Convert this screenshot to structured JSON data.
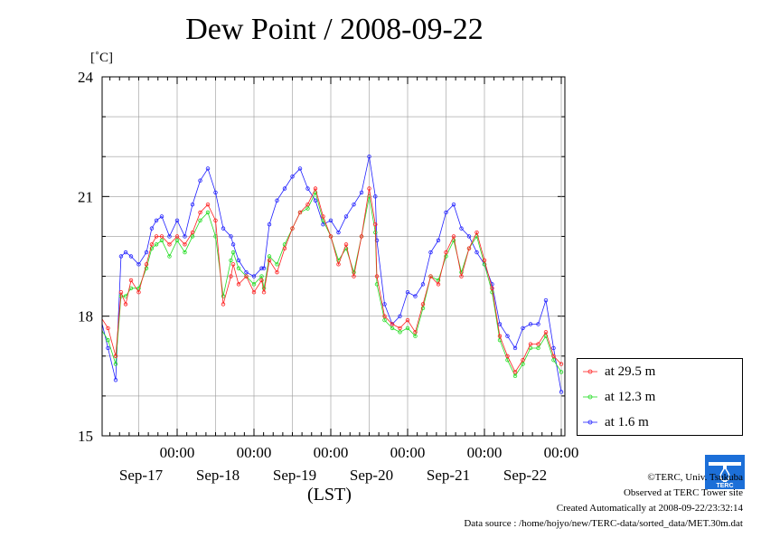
{
  "title": "Dew Point / 2008-09-22",
  "y_unit": "[˚C]",
  "x_unit": "(LST)",
  "legend": [
    {
      "label": "at 29.5 m",
      "color": "#ff2020"
    },
    {
      "label": "at 12.3 m",
      "color": "#22dd22"
    },
    {
      "label": "at 1.6 m",
      "color": "#2020ff"
    }
  ],
  "footer": {
    "copyright": "©TERC, Univ. Tsukuba",
    "observed": "Observed at TERC Tower site",
    "created": "Created Automatically at 2008-09-22/23:32:14",
    "source": "Data source : /home/hojyo/new/TERC-data/sorted_data/MET.30m.dat"
  },
  "logo": {
    "text": "TERC",
    "icon": "terc-logo-icon"
  },
  "chart_data": {
    "type": "line",
    "title": "Dew Point / 2008-09-22",
    "ylabel": "[˚C]",
    "xlabel": "(LST)",
    "ylim": [
      15,
      24
    ],
    "yticks": [
      15,
      18,
      21,
      24
    ],
    "xlim": [
      0,
      6
    ],
    "x_unit": "days since Sep-16 00:00 LST",
    "xticks": [
      {
        "x": 1,
        "time": "00:00",
        "date": "Sep-17"
      },
      {
        "x": 2,
        "time": "00:00",
        "date": "Sep-18"
      },
      {
        "x": 3,
        "time": "00:00",
        "date": "Sep-19"
      },
      {
        "x": 4,
        "time": "00:00",
        "date": "Sep-20"
      },
      {
        "x": 5,
        "time": "00:00",
        "date": "Sep-21"
      },
      {
        "x": 6,
        "time": "00:00",
        "date": "Sep-22"
      }
    ],
    "grid": true,
    "legend_position": "right-bottom",
    "series": [
      {
        "name": "at 29.5 m",
        "color": "#ff2020",
        "x": [
          0.0,
          0.1,
          0.2,
          0.27,
          0.33,
          0.4,
          0.5,
          0.6,
          0.67,
          0.73,
          0.8,
          0.9,
          1.0,
          1.1,
          1.2,
          1.3,
          1.4,
          1.5,
          1.6,
          1.7,
          1.73,
          1.8,
          1.9,
          2.0,
          2.1,
          2.13,
          2.2,
          2.3,
          2.4,
          2.5,
          2.6,
          2.7,
          2.8,
          2.9,
          3.0,
          3.1,
          3.2,
          3.3,
          3.4,
          3.5,
          3.58,
          3.6,
          3.7,
          3.8,
          3.9,
          4.0,
          4.1,
          4.2,
          4.3,
          4.4,
          4.5,
          4.6,
          4.7,
          4.8,
          4.9,
          5.0,
          5.1,
          5.2,
          5.3,
          5.4,
          5.5,
          5.6,
          5.7,
          5.8,
          5.9,
          6.0
        ],
        "y": [
          18.0,
          17.7,
          17.0,
          18.6,
          18.3,
          18.9,
          18.6,
          19.3,
          19.8,
          20.0,
          20.0,
          19.8,
          20.0,
          19.8,
          20.1,
          20.6,
          20.8,
          20.4,
          18.3,
          19.0,
          19.3,
          18.8,
          19.0,
          18.6,
          18.9,
          18.6,
          19.4,
          19.1,
          19.7,
          20.2,
          20.6,
          20.8,
          21.2,
          20.5,
          20.0,
          19.3,
          19.8,
          19.0,
          20.0,
          21.2,
          20.3,
          19.0,
          18.0,
          17.8,
          17.7,
          17.9,
          17.6,
          18.3,
          19.0,
          18.8,
          19.6,
          20.0,
          19.0,
          19.7,
          20.1,
          19.4,
          18.7,
          17.5,
          17.0,
          16.6,
          16.9,
          17.3,
          17.3,
          17.6,
          17.0,
          16.8
        ]
      },
      {
        "name": "at 12.3 m",
        "color": "#22dd22",
        "x": [
          0.0,
          0.1,
          0.2,
          0.27,
          0.33,
          0.4,
          0.5,
          0.6,
          0.67,
          0.73,
          0.8,
          0.9,
          1.0,
          1.1,
          1.2,
          1.3,
          1.4,
          1.5,
          1.6,
          1.7,
          1.73,
          1.8,
          1.9,
          2.0,
          2.1,
          2.13,
          2.2,
          2.3,
          2.4,
          2.5,
          2.6,
          2.7,
          2.8,
          2.9,
          3.0,
          3.1,
          3.2,
          3.3,
          3.4,
          3.5,
          3.58,
          3.6,
          3.7,
          3.8,
          3.9,
          4.0,
          4.1,
          4.2,
          4.3,
          4.4,
          4.5,
          4.6,
          4.7,
          4.8,
          4.9,
          5.0,
          5.1,
          5.2,
          5.3,
          5.4,
          5.5,
          5.6,
          5.7,
          5.8,
          5.9,
          6.0
        ],
        "y": [
          17.7,
          17.4,
          16.8,
          18.5,
          18.5,
          18.7,
          18.7,
          19.2,
          19.7,
          19.8,
          19.9,
          19.5,
          19.9,
          19.6,
          20.0,
          20.4,
          20.6,
          20.0,
          18.5,
          19.4,
          19.6,
          19.2,
          19.0,
          18.8,
          19.0,
          18.7,
          19.5,
          19.3,
          19.8,
          20.2,
          20.6,
          20.7,
          21.1,
          20.4,
          20.0,
          19.4,
          19.7,
          19.1,
          20.0,
          21.0,
          20.1,
          18.8,
          17.9,
          17.7,
          17.6,
          17.7,
          17.5,
          18.2,
          19.0,
          18.9,
          19.5,
          19.9,
          19.1,
          19.7,
          20.0,
          19.3,
          18.6,
          17.4,
          16.9,
          16.5,
          16.8,
          17.2,
          17.2,
          17.5,
          16.9,
          16.6
        ]
      },
      {
        "name": "at 1.6 m",
        "color": "#2020ff",
        "x": [
          0.0,
          0.1,
          0.2,
          0.27,
          0.33,
          0.4,
          0.5,
          0.6,
          0.67,
          0.73,
          0.8,
          0.9,
          1.0,
          1.1,
          1.2,
          1.3,
          1.4,
          1.5,
          1.6,
          1.7,
          1.73,
          1.8,
          1.9,
          2.0,
          2.1,
          2.13,
          2.2,
          2.3,
          2.4,
          2.5,
          2.6,
          2.7,
          2.8,
          2.9,
          3.0,
          3.1,
          3.2,
          3.3,
          3.4,
          3.5,
          3.58,
          3.6,
          3.7,
          3.8,
          3.9,
          4.0,
          4.1,
          4.2,
          4.3,
          4.4,
          4.5,
          4.6,
          4.7,
          4.8,
          4.9,
          5.0,
          5.1,
          5.2,
          5.3,
          5.4,
          5.5,
          5.6,
          5.7,
          5.8,
          5.9,
          6.0
        ],
        "y": [
          18.0,
          17.2,
          16.4,
          19.5,
          19.6,
          19.5,
          19.3,
          19.6,
          20.2,
          20.4,
          20.5,
          20.0,
          20.4,
          20.0,
          20.8,
          21.4,
          21.7,
          21.1,
          20.2,
          20.0,
          19.8,
          19.4,
          19.1,
          19.0,
          19.2,
          19.2,
          20.3,
          20.9,
          21.2,
          21.5,
          21.7,
          21.2,
          20.9,
          20.3,
          20.4,
          20.1,
          20.5,
          20.8,
          21.1,
          22.0,
          21.0,
          19.9,
          18.3,
          17.8,
          18.0,
          18.6,
          18.5,
          18.8,
          19.6,
          19.9,
          20.6,
          20.8,
          20.2,
          20.0,
          19.6,
          19.3,
          18.8,
          17.8,
          17.5,
          17.2,
          17.7,
          17.8,
          17.8,
          18.4,
          17.2,
          16.1
        ]
      }
    ]
  }
}
